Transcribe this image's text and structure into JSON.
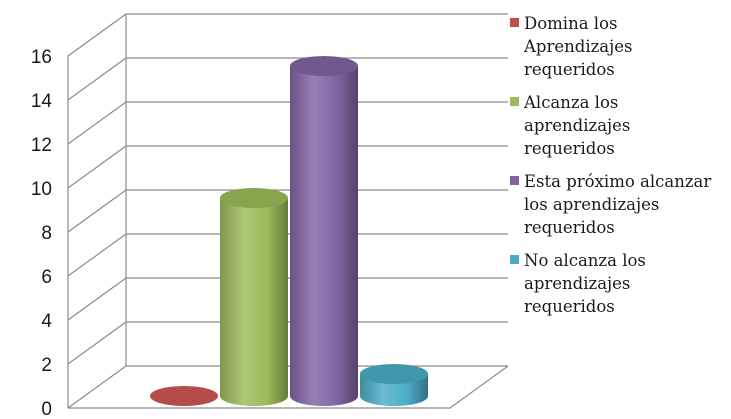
{
  "chart_data": {
    "type": "bar",
    "categories": [
      "Domina los Aprendizajes requeridos",
      "Alcanza los aprendizajes requeridos",
      "Esta próximo alcanzar los aprendizajes requeridos",
      "No alcanza los aprendizajes requeridos"
    ],
    "values": [
      0,
      9,
      15,
      1
    ],
    "colors": [
      "#c0504d",
      "#9bbb59",
      "#8064a2",
      "#4bacc6"
    ],
    "title": "",
    "xlabel": "",
    "ylabel": "",
    "ylim": [
      0,
      16
    ],
    "y_ticks": [
      "0",
      "2",
      "4",
      "6",
      "8",
      "10",
      "12",
      "14",
      "16"
    ],
    "grid": true,
    "legend_position": "right",
    "legend": [
      [
        "Domina los",
        "Aprendizajes",
        "requeridos"
      ],
      [
        "Alcanza los",
        "aprendizajes",
        "requeridos"
      ],
      [
        "Esta próximo alcanzar",
        "los aprendizajes",
        "requeridos"
      ],
      [
        "No alcanza los",
        "aprendizajes",
        "requeridos"
      ]
    ]
  }
}
